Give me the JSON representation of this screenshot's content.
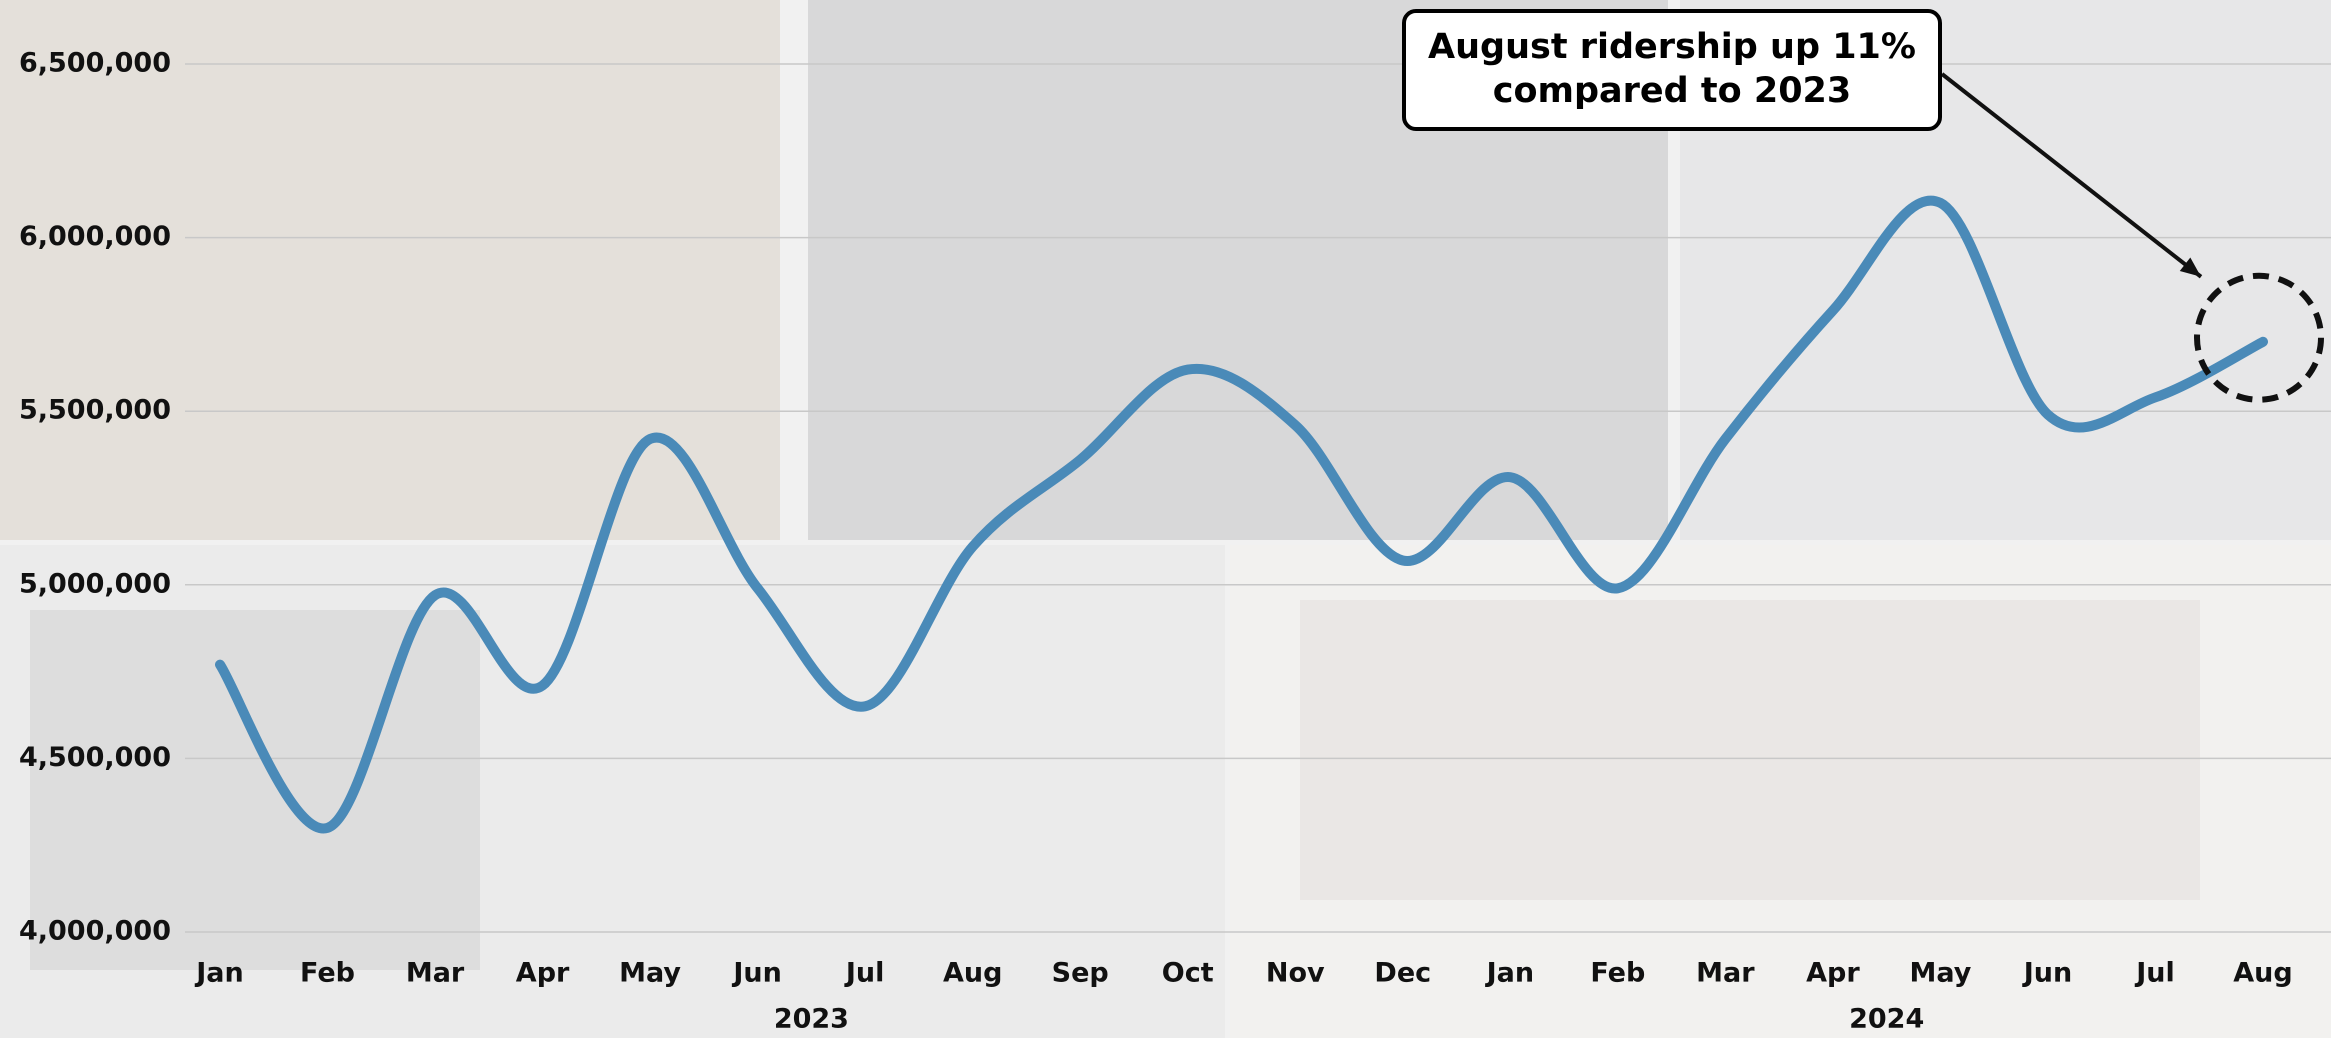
{
  "chart_data": {
    "type": "line",
    "annotation": "August ridership up 11% compared to 2023",
    "groups": [
      {
        "label": "2023",
        "categories": [
          "Jan",
          "Feb",
          "Mar",
          "Apr",
          "May",
          "Jun",
          "Jul",
          "Aug",
          "Sep",
          "Oct",
          "Nov",
          "Dec"
        ]
      },
      {
        "label": "2024",
        "categories": [
          "Jan",
          "Feb",
          "Mar",
          "Apr",
          "May",
          "Jun",
          "Jul",
          "Aug"
        ]
      }
    ],
    "series": [
      {
        "color": "#4a8ab8",
        "values": [
          4770000,
          4300000,
          4970000,
          4710000,
          5420000,
          4990000,
          4650000,
          5110000,
          5360000,
          5620000,
          5460000,
          5070000,
          5310000,
          4990000,
          5420000,
          5790000,
          6100000,
          5490000,
          5540000,
          5700000
        ]
      }
    ],
    "ylim": [
      4000000,
      6500000
    ],
    "yticks": [
      {
        "value": 4000000,
        "label": "4,000,000"
      },
      {
        "value": 4500000,
        "label": "4,500,000"
      },
      {
        "value": 5000000,
        "label": "5,000,000"
      },
      {
        "value": 5500000,
        "label": "5,500,000"
      },
      {
        "value": 6000000,
        "label": "6,000,000"
      },
      {
        "value": 6500000,
        "label": "6,500,000"
      }
    ],
    "grid": true
  }
}
